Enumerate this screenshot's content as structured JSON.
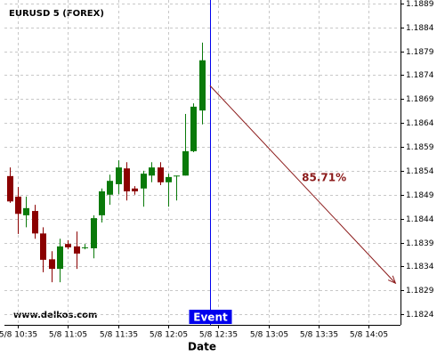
{
  "chart_data": {
    "type": "candlestick",
    "title": "EURUSD 5 (FOREX)",
    "x_label": "Date",
    "x": [
      "5/8 10:30",
      "5/8 10:35",
      "5/8 10:40",
      "5/8 10:45",
      "5/8 10:50",
      "5/8 10:55",
      "5/8 11:00",
      "5/8 11:05",
      "5/8 11:10",
      "5/8 11:15",
      "5/8 11:20",
      "5/8 11:25",
      "5/8 11:30",
      "5/8 11:35",
      "5/8 11:40",
      "5/8 11:45",
      "5/8 11:50",
      "5/8 11:55",
      "5/8 12:00",
      "5/8 12:05",
      "5/8 12:10",
      "5/8 12:15",
      "5/8 12:20",
      "5/8 12:25"
    ],
    "open": [
      1.18529,
      1.18486,
      1.18447,
      1.18456,
      1.18409,
      1.18355,
      1.18335,
      1.18387,
      1.18382,
      1.1838,
      1.18378,
      1.18447,
      1.1849,
      1.18512,
      1.18545,
      1.18503,
      1.18503,
      1.1853,
      1.18547,
      1.18516,
      1.1853,
      1.1853,
      1.18581,
      1.18666
    ],
    "high": [
      1.18547,
      1.18506,
      1.18486,
      1.18469,
      1.18422,
      1.18372,
      1.18398,
      1.18395,
      1.18413,
      1.18387,
      1.18447,
      1.18503,
      1.18532,
      1.18562,
      1.18558,
      1.18508,
      1.1854,
      1.18558,
      1.18558,
      1.18534,
      1.1853,
      1.18659,
      1.18681,
      1.18808
    ],
    "low": [
      1.18473,
      1.18408,
      1.18422,
      1.18398,
      1.18328,
      1.18307,
      1.18307,
      1.18376,
      1.18335,
      1.18376,
      1.18357,
      1.18432,
      1.18469,
      1.18491,
      1.18478,
      1.1849,
      1.18465,
      1.18516,
      1.1851,
      1.18465,
      1.18478,
      1.1853,
      1.18579,
      1.18637
    ],
    "close": [
      1.18476,
      1.1845,
      1.18462,
      1.18409,
      1.18354,
      1.18335,
      1.18382,
      1.1838,
      1.18367,
      1.1838,
      1.18441,
      1.18497,
      1.18519,
      1.18547,
      1.18497,
      1.18497,
      1.18534,
      1.18547,
      1.18516,
      1.18527,
      1.1853,
      1.18581,
      1.18674,
      1.18771
    ],
    "up_color": "#0a7a0a",
    "down_color": "#8b0000",
    "xlim": [
      "5/8 10:27",
      "5/8 14:24"
    ],
    "xticks": [
      "5/8 10:35",
      "5/8 11:05",
      "5/8 11:35",
      "5/8 12:05",
      "5/8 12:35",
      "5/8 13:05",
      "5/8 13:35",
      "5/8 14:05"
    ],
    "ylim": [
      1.18218,
      1.18897
    ],
    "yticks": [
      1.1824,
      1.1829,
      1.1834,
      1.1839,
      1.1844,
      1.1849,
      1.1854,
      1.1859,
      1.1864,
      1.1869,
      1.1874,
      1.1879,
      1.1884,
      1.1889
    ],
    "grid": true,
    "watermark": "www.delkos.com",
    "event": {
      "label": "Event",
      "x": "5/8 12:30",
      "color": "#0000ee"
    },
    "forecast": {
      "label": "85.71%",
      "x": [
        "5/8 12:30",
        "5/8 14:21"
      ],
      "y": [
        1.18718,
        1.18305
      ],
      "color": "#8b1a1a"
    }
  }
}
